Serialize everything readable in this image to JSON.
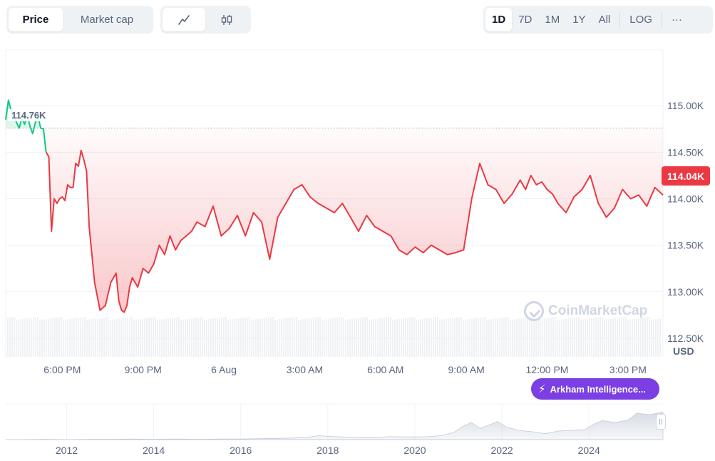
{
  "toolbar": {
    "type_options": [
      {
        "label": "Price",
        "active": true
      },
      {
        "label": "Market cap",
        "active": false
      }
    ],
    "style_options": [
      {
        "icon": "line-chart-icon",
        "active": true
      },
      {
        "icon": "candlestick-icon",
        "active": false
      }
    ],
    "range_options": [
      {
        "label": "1D",
        "active": true
      },
      {
        "label": "7D",
        "active": false
      },
      {
        "label": "1M",
        "active": false
      },
      {
        "label": "1Y",
        "active": false
      },
      {
        "label": "All",
        "active": false
      }
    ],
    "log_label": "LOG",
    "more_label": "···"
  },
  "chart_data": {
    "type": "line",
    "currency_label": "USD",
    "y_ticks": [
      "115.00K",
      "114.50K",
      "114.00K",
      "113.50K",
      "113.00K",
      "112.50K"
    ],
    "y_tick_values": [
      115000,
      114500,
      114000,
      113500,
      113000,
      112500
    ],
    "ylim": [
      112300,
      115600
    ],
    "x_ticks": [
      "6:00 PM",
      "9:00 PM",
      "6 Aug",
      "3:00 AM",
      "6:00 AM",
      "9:00 AM",
      "12:00 PM",
      "3:00 PM"
    ],
    "x_tick_hours": [
      1,
      4,
      7,
      10,
      13,
      16,
      19,
      22
    ],
    "x_range_hours": [
      -1.1,
      23.3
    ],
    "open_price": 114760,
    "open_price_label": "114.76K",
    "current_price_label": "114.04K",
    "colors": {
      "up": "#16c784",
      "down": "#ea3943"
    },
    "series": [
      {
        "x": [
          -1.1,
          -1.0,
          -0.9,
          -0.8,
          -0.7,
          -0.6,
          -0.5,
          -0.4,
          -0.3,
          -0.2,
          -0.1,
          0.0,
          0.1,
          0.2,
          0.3,
          0.4,
          0.5,
          0.6,
          0.7,
          0.8,
          0.9,
          1.0,
          1.1,
          1.2,
          1.3,
          1.4,
          1.5,
          1.6,
          1.7,
          1.8,
          1.9,
          2.0,
          2.2,
          2.4,
          2.6,
          2.8,
          3.0,
          3.1,
          3.2,
          3.3,
          3.4,
          3.5,
          3.6,
          3.8,
          4.0,
          4.2,
          4.4,
          4.6,
          4.8,
          5.0,
          5.2,
          5.4,
          5.6,
          5.8,
          6.0,
          6.3,
          6.6,
          6.9,
          7.2,
          7.5,
          7.8,
          8.1,
          8.4,
          8.7,
          9.0,
          9.3,
          9.6,
          9.9,
          10.2,
          10.5,
          10.8,
          11.1,
          11.4,
          11.7,
          12.0,
          12.3,
          12.6,
          12.9,
          13.2,
          13.5,
          13.8,
          14.1,
          14.4,
          14.7,
          15.0,
          15.3,
          15.6,
          15.9,
          16.2,
          16.5,
          16.8,
          17.1,
          17.4,
          17.7,
          18.0,
          18.2,
          18.4,
          18.6,
          18.8,
          19.0,
          19.2,
          19.4,
          19.7,
          20.0,
          20.3,
          20.6,
          20.9,
          21.2,
          21.5,
          21.8,
          22.1,
          22.4,
          22.7,
          23.0,
          23.3
        ],
        "y": [
          114850,
          115060,
          114950,
          114900,
          114820,
          114760,
          114870,
          114800,
          114900,
          114780,
          114700,
          114820,
          114880,
          114760,
          114750,
          114500,
          114450,
          113650,
          114000,
          113950,
          114000,
          114020,
          113980,
          114150,
          114120,
          114120,
          114380,
          114350,
          114520,
          114420,
          114300,
          113700,
          113100,
          112800,
          112850,
          113100,
          113200,
          112900,
          112800,
          112780,
          112850,
          113050,
          113150,
          113050,
          113250,
          113200,
          113300,
          113500,
          113400,
          113600,
          113450,
          113550,
          113600,
          113650,
          113750,
          113700,
          113920,
          113600,
          113680,
          113820,
          113600,
          113850,
          113750,
          113350,
          113800,
          113950,
          114100,
          114150,
          114020,
          113950,
          113900,
          113850,
          113950,
          113800,
          113650,
          113820,
          113700,
          113650,
          113600,
          113450,
          113400,
          113480,
          113420,
          113500,
          113450,
          113400,
          113420,
          113450,
          114000,
          114380,
          114150,
          114100,
          113950,
          114050,
          114200,
          114100,
          114250,
          114150,
          114180,
          114100,
          114050,
          113950,
          113850,
          114020,
          114100,
          114250,
          113950,
          113800,
          113900,
          114100,
          114000,
          114040,
          113920,
          114120,
          114040
        ]
      }
    ]
  },
  "navigator": {
    "years": [
      "2012",
      "2014",
      "2016",
      "2018",
      "2020",
      "2022",
      "2024"
    ],
    "year_positions": [
      2012,
      2014,
      2016,
      2018,
      2020,
      2022,
      2024
    ],
    "x_range_years": [
      2010.6,
      2025.7
    ],
    "series": {
      "x": [
        2010.6,
        2011.0,
        2011.5,
        2012.0,
        2012.5,
        2013.0,
        2013.5,
        2014.0,
        2014.5,
        2015.0,
        2015.5,
        2016.0,
        2016.5,
        2017.0,
        2017.5,
        2017.8,
        2018.0,
        2018.3,
        2018.6,
        2019.0,
        2019.4,
        2019.8,
        2020.2,
        2020.6,
        2020.9,
        2021.1,
        2021.3,
        2021.5,
        2021.7,
        2021.9,
        2022.1,
        2022.4,
        2022.7,
        2023.0,
        2023.3,
        2023.6,
        2023.9,
        2024.1,
        2024.3,
        2024.6,
        2024.9,
        2025.1,
        2025.4,
        2025.7
      ],
      "y": [
        0,
        0,
        0.01,
        0,
        0.01,
        0.01,
        0.02,
        0.01,
        0.02,
        0.01,
        0.02,
        0.02,
        0.03,
        0.04,
        0.06,
        0.12,
        0.1,
        0.08,
        0.07,
        0.05,
        0.09,
        0.08,
        0.08,
        0.12,
        0.22,
        0.4,
        0.52,
        0.34,
        0.44,
        0.55,
        0.38,
        0.28,
        0.24,
        0.18,
        0.26,
        0.28,
        0.3,
        0.46,
        0.58,
        0.52,
        0.6,
        0.8,
        0.76,
        0.84
      ]
    }
  },
  "watermark": {
    "text": "CoinMarketCap"
  },
  "promo": {
    "label": "Arkham Intelligence..."
  }
}
